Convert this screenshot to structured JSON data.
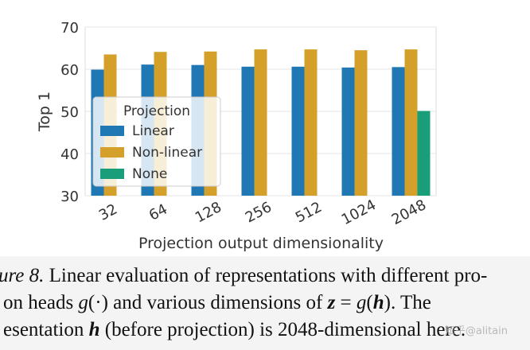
{
  "chart_data": {
    "type": "bar",
    "title": "",
    "xlabel": "Projection output dimensionality",
    "ylabel": "Top 1",
    "ylim": [
      30,
      70
    ],
    "yticks": [
      30,
      40,
      50,
      60,
      70
    ],
    "grid": true,
    "categories": [
      "32",
      "64",
      "128",
      "256",
      "512",
      "1024",
      "2048"
    ],
    "series": [
      {
        "name": "Linear",
        "color": "#1f77b4",
        "values": [
          59.9,
          61.1,
          61.0,
          60.6,
          60.6,
          60.4,
          60.5
        ]
      },
      {
        "name": "Non-linear",
        "color": "#d4a02a",
        "values": [
          63.5,
          64.1,
          64.2,
          64.7,
          64.7,
          64.5,
          64.7
        ]
      },
      {
        "name": "None",
        "color": "#1a9e7a",
        "values": [
          null,
          null,
          null,
          null,
          null,
          null,
          50.1
        ]
      }
    ],
    "legend": {
      "title": "Projection",
      "placement": "center-left"
    }
  },
  "caption": {
    "line1_italic": "ure 8.",
    "line1_rest": " Linear evaluation of representations with different pro-",
    "line2_a": "on heads ",
    "line2_g": "g",
    "line2_b": "(·) and various dimensions of ",
    "line2_z": "z",
    "line2_c": " = ",
    "line2_g2": "g",
    "line2_d": "(",
    "line2_h": "h",
    "line2_e": ").  The",
    "line3_a": "esentation ",
    "line3_h": "h",
    "line3_b": " (before projection) is 2048-dimensional here."
  },
  "watermark": "知乎@alitain"
}
